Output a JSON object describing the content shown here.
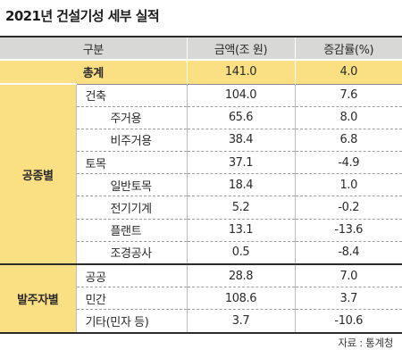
{
  "title": "2021년 건설기성 세부 실적",
  "header": {
    "category": "구분",
    "amount": "금액(조 원)",
    "change": "증감률(%)"
  },
  "total": {
    "label": "총계",
    "amount": "141.0",
    "change": "4.0"
  },
  "groups": [
    {
      "label": "공종별",
      "rows": [
        {
          "label": "건축",
          "level": 1,
          "amount": "104.0",
          "change": "7.6"
        },
        {
          "label": "주거용",
          "level": 2,
          "amount": "65.6",
          "change": "8.0"
        },
        {
          "label": "비주거용",
          "level": 2,
          "amount": "38.4",
          "change": "6.8"
        },
        {
          "label": "토목",
          "level": 1,
          "amount": "37.1",
          "change": "-4.9"
        },
        {
          "label": "일반토목",
          "level": 2,
          "amount": "18.4",
          "change": "1.0"
        },
        {
          "label": "전기기계",
          "level": 2,
          "amount": "5.2",
          "change": "-0.2"
        },
        {
          "label": "플랜트",
          "level": 2,
          "amount": "13.1",
          "change": "-13.6"
        },
        {
          "label": "조경공사",
          "level": 2,
          "amount": "0.5",
          "change": "-8.4"
        }
      ]
    },
    {
      "label": "발주자별",
      "rows": [
        {
          "label": "공공",
          "level": 1,
          "amount": "28.8",
          "change": "7.0"
        },
        {
          "label": "민간",
          "level": 1,
          "amount": "108.6",
          "change": "3.7"
        },
        {
          "label": "기타(민자 등)",
          "level": 1,
          "amount": "3.7",
          "change": "-10.6"
        }
      ]
    }
  ],
  "source": "자료 : 통계청",
  "colors": {
    "header_bg": "#d8d8d6",
    "highlight_bg": "#fbdf83",
    "rule": "#2b2b2b"
  }
}
